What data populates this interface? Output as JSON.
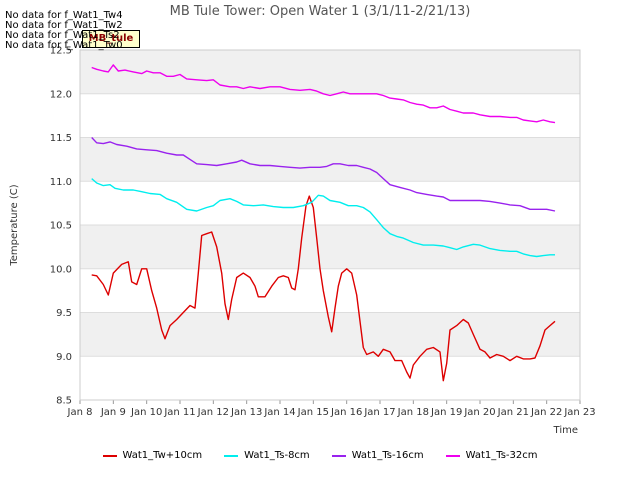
{
  "no_data_messages": [
    "No data for f_Wat1_Tw4",
    "No data for f_Wat1_Tw2",
    "No data for f_Wat1_Ts2",
    "No data for f_Wat1_Tw0"
  ],
  "badge_text": "MB_tule",
  "chart_data": {
    "type": "line",
    "title": "MB Tule Tower: Open Water 1 (3/1/11-2/21/13)",
    "xlabel": "Time",
    "ylabel": "Temperature (C)",
    "xlim": [
      8,
      23
    ],
    "ylim": [
      8.5,
      12.5
    ],
    "x_ticks": [
      8,
      9,
      10,
      11,
      12,
      13,
      14,
      15,
      16,
      17,
      18,
      19,
      20,
      21,
      22,
      23
    ],
    "x_tick_labels": [
      "Jan 8",
      "Jan 9",
      "Jan 10",
      "Jan 11",
      "Jan 12",
      "Jan 13",
      "Jan 14",
      "Jan 15",
      "Jan 16",
      "Jan 17",
      "Jan 18",
      "Jan 19",
      "Jan 20",
      "Jan 21",
      "Jan 22",
      "Jan 23"
    ],
    "y_ticks": [
      8.5,
      9.0,
      9.5,
      10.0,
      10.5,
      11.0,
      11.5,
      12.0,
      12.5
    ],
    "y_tick_labels": [
      "8.5",
      "9.0",
      "9.5",
      "10.0",
      "10.5",
      "11.0",
      "11.5",
      "12.0",
      "12.5"
    ],
    "grid": true,
    "legend_position": "bottom",
    "series": [
      {
        "name": "Wat1_Tw+10cm",
        "color": "#dd0000",
        "points": [
          [
            8.35,
            9.93
          ],
          [
            8.5,
            9.92
          ],
          [
            8.7,
            9.82
          ],
          [
            8.85,
            9.7
          ],
          [
            9.0,
            9.95
          ],
          [
            9.25,
            10.05
          ],
          [
            9.45,
            10.08
          ],
          [
            9.55,
            9.85
          ],
          [
            9.7,
            9.82
          ],
          [
            9.85,
            10.0
          ],
          [
            10.0,
            10.0
          ],
          [
            10.15,
            9.75
          ],
          [
            10.3,
            9.55
          ],
          [
            10.45,
            9.3
          ],
          [
            10.55,
            9.2
          ],
          [
            10.7,
            9.35
          ],
          [
            10.9,
            9.42
          ],
          [
            11.1,
            9.5
          ],
          [
            11.3,
            9.58
          ],
          [
            11.45,
            9.55
          ],
          [
            11.55,
            9.95
          ],
          [
            11.65,
            10.38
          ],
          [
            11.8,
            10.4
          ],
          [
            11.95,
            10.42
          ],
          [
            12.1,
            10.25
          ],
          [
            12.25,
            9.95
          ],
          [
            12.35,
            9.6
          ],
          [
            12.45,
            9.42
          ],
          [
            12.55,
            9.65
          ],
          [
            12.7,
            9.9
          ],
          [
            12.9,
            9.95
          ],
          [
            13.1,
            9.9
          ],
          [
            13.25,
            9.8
          ],
          [
            13.35,
            9.68
          ],
          [
            13.55,
            9.68
          ],
          [
            13.75,
            9.8
          ],
          [
            13.95,
            9.9
          ],
          [
            14.1,
            9.92
          ],
          [
            14.25,
            9.9
          ],
          [
            14.35,
            9.78
          ],
          [
            14.45,
            9.76
          ],
          [
            14.55,
            10.0
          ],
          [
            14.65,
            10.35
          ],
          [
            14.78,
            10.72
          ],
          [
            14.88,
            10.83
          ],
          [
            15.0,
            10.7
          ],
          [
            15.1,
            10.35
          ],
          [
            15.2,
            10.0
          ],
          [
            15.3,
            9.75
          ],
          [
            15.45,
            9.45
          ],
          [
            15.55,
            9.28
          ],
          [
            15.65,
            9.55
          ],
          [
            15.75,
            9.8
          ],
          [
            15.85,
            9.95
          ],
          [
            16.0,
            10.0
          ],
          [
            16.15,
            9.95
          ],
          [
            16.3,
            9.7
          ],
          [
            16.4,
            9.4
          ],
          [
            16.5,
            9.1
          ],
          [
            16.6,
            9.02
          ],
          [
            16.8,
            9.05
          ],
          [
            16.95,
            9.0
          ],
          [
            17.1,
            9.08
          ],
          [
            17.3,
            9.05
          ],
          [
            17.45,
            8.95
          ],
          [
            17.65,
            8.95
          ],
          [
            17.8,
            8.82
          ],
          [
            17.9,
            8.75
          ],
          [
            18.0,
            8.9
          ],
          [
            18.2,
            9.0
          ],
          [
            18.4,
            9.08
          ],
          [
            18.6,
            9.1
          ],
          [
            18.8,
            9.05
          ],
          [
            18.9,
            8.72
          ],
          [
            19.0,
            8.92
          ],
          [
            19.1,
            9.3
          ],
          [
            19.3,
            9.35
          ],
          [
            19.5,
            9.42
          ],
          [
            19.65,
            9.38
          ],
          [
            19.8,
            9.25
          ],
          [
            20.0,
            9.08
          ],
          [
            20.15,
            9.05
          ],
          [
            20.3,
            8.98
          ],
          [
            20.5,
            9.02
          ],
          [
            20.7,
            9.0
          ],
          [
            20.9,
            8.95
          ],
          [
            21.1,
            9.0
          ],
          [
            21.3,
            8.97
          ],
          [
            21.5,
            8.97
          ],
          [
            21.65,
            8.98
          ],
          [
            21.8,
            9.12
          ],
          [
            21.95,
            9.3
          ],
          [
            22.1,
            9.35
          ],
          [
            22.25,
            9.4
          ]
        ]
      },
      {
        "name": "Wat1_Ts-8cm",
        "color": "#00eeee",
        "points": [
          [
            8.35,
            11.03
          ],
          [
            8.5,
            10.98
          ],
          [
            8.7,
            10.95
          ],
          [
            8.9,
            10.96
          ],
          [
            9.05,
            10.92
          ],
          [
            9.3,
            10.9
          ],
          [
            9.6,
            10.9
          ],
          [
            9.85,
            10.88
          ],
          [
            10.1,
            10.86
          ],
          [
            10.4,
            10.85
          ],
          [
            10.6,
            10.8
          ],
          [
            10.9,
            10.76
          ],
          [
            11.2,
            10.68
          ],
          [
            11.5,
            10.66
          ],
          [
            11.8,
            10.7
          ],
          [
            12.0,
            10.72
          ],
          [
            12.2,
            10.78
          ],
          [
            12.5,
            10.8
          ],
          [
            12.7,
            10.77
          ],
          [
            12.9,
            10.73
          ],
          [
            13.2,
            10.72
          ],
          [
            13.5,
            10.73
          ],
          [
            13.8,
            10.71
          ],
          [
            14.1,
            10.7
          ],
          [
            14.4,
            10.7
          ],
          [
            14.7,
            10.72
          ],
          [
            14.95,
            10.76
          ],
          [
            15.15,
            10.84
          ],
          [
            15.3,
            10.83
          ],
          [
            15.5,
            10.78
          ],
          [
            15.8,
            10.76
          ],
          [
            16.05,
            10.72
          ],
          [
            16.3,
            10.72
          ],
          [
            16.5,
            10.7
          ],
          [
            16.7,
            10.65
          ],
          [
            16.9,
            10.56
          ],
          [
            17.1,
            10.47
          ],
          [
            17.3,
            10.4
          ],
          [
            17.5,
            10.37
          ],
          [
            17.7,
            10.35
          ],
          [
            18.0,
            10.3
          ],
          [
            18.3,
            10.27
          ],
          [
            18.6,
            10.27
          ],
          [
            18.9,
            10.26
          ],
          [
            19.1,
            10.24
          ],
          [
            19.3,
            10.22
          ],
          [
            19.5,
            10.25
          ],
          [
            19.8,
            10.28
          ],
          [
            20.0,
            10.27
          ],
          [
            20.3,
            10.23
          ],
          [
            20.6,
            10.21
          ],
          [
            20.9,
            10.2
          ],
          [
            21.1,
            10.2
          ],
          [
            21.3,
            10.17
          ],
          [
            21.5,
            10.15
          ],
          [
            21.7,
            10.14
          ],
          [
            21.9,
            10.15
          ],
          [
            22.1,
            10.16
          ],
          [
            22.25,
            10.16
          ]
        ]
      },
      {
        "name": "Wat1_Ts-16cm",
        "color": "#9922ee",
        "points": [
          [
            8.35,
            11.5
          ],
          [
            8.5,
            11.44
          ],
          [
            8.7,
            11.43
          ],
          [
            8.9,
            11.45
          ],
          [
            9.1,
            11.42
          ],
          [
            9.4,
            11.4
          ],
          [
            9.7,
            11.37
          ],
          [
            10.0,
            11.36
          ],
          [
            10.3,
            11.35
          ],
          [
            10.6,
            11.32
          ],
          [
            10.9,
            11.3
          ],
          [
            11.1,
            11.3
          ],
          [
            11.3,
            11.25
          ],
          [
            11.5,
            11.2
          ],
          [
            11.8,
            11.19
          ],
          [
            12.1,
            11.18
          ],
          [
            12.4,
            11.2
          ],
          [
            12.7,
            11.22
          ],
          [
            12.85,
            11.24
          ],
          [
            13.1,
            11.2
          ],
          [
            13.4,
            11.18
          ],
          [
            13.7,
            11.18
          ],
          [
            14.0,
            11.17
          ],
          [
            14.3,
            11.16
          ],
          [
            14.6,
            11.15
          ],
          [
            14.9,
            11.16
          ],
          [
            15.2,
            11.16
          ],
          [
            15.4,
            11.17
          ],
          [
            15.6,
            11.2
          ],
          [
            15.8,
            11.2
          ],
          [
            16.05,
            11.18
          ],
          [
            16.3,
            11.18
          ],
          [
            16.5,
            11.16
          ],
          [
            16.7,
            11.14
          ],
          [
            16.9,
            11.1
          ],
          [
            17.1,
            11.03
          ],
          [
            17.3,
            10.96
          ],
          [
            17.6,
            10.93
          ],
          [
            17.9,
            10.9
          ],
          [
            18.1,
            10.87
          ],
          [
            18.4,
            10.85
          ],
          [
            18.7,
            10.83
          ],
          [
            18.9,
            10.82
          ],
          [
            19.1,
            10.78
          ],
          [
            19.4,
            10.78
          ],
          [
            19.7,
            10.78
          ],
          [
            20.0,
            10.78
          ],
          [
            20.3,
            10.77
          ],
          [
            20.6,
            10.75
          ],
          [
            20.9,
            10.73
          ],
          [
            21.2,
            10.72
          ],
          [
            21.5,
            10.68
          ],
          [
            21.8,
            10.68
          ],
          [
            22.0,
            10.68
          ],
          [
            22.25,
            10.66
          ]
        ]
      },
      {
        "name": "Wat1_Ts-32cm",
        "color": "#ee00ee",
        "points": [
          [
            8.35,
            12.3
          ],
          [
            8.5,
            12.28
          ],
          [
            8.7,
            12.26
          ],
          [
            8.85,
            12.25
          ],
          [
            9.0,
            12.33
          ],
          [
            9.15,
            12.26
          ],
          [
            9.35,
            12.27
          ],
          [
            9.6,
            12.25
          ],
          [
            9.85,
            12.23
          ],
          [
            10.0,
            12.26
          ],
          [
            10.2,
            12.24
          ],
          [
            10.4,
            12.24
          ],
          [
            10.6,
            12.2
          ],
          [
            10.8,
            12.2
          ],
          [
            11.0,
            12.22
          ],
          [
            11.2,
            12.17
          ],
          [
            11.5,
            12.16
          ],
          [
            11.8,
            12.15
          ],
          [
            12.0,
            12.16
          ],
          [
            12.2,
            12.1
          ],
          [
            12.5,
            12.08
          ],
          [
            12.7,
            12.08
          ],
          [
            12.9,
            12.06
          ],
          [
            13.1,
            12.08
          ],
          [
            13.4,
            12.06
          ],
          [
            13.7,
            12.08
          ],
          [
            14.0,
            12.08
          ],
          [
            14.3,
            12.05
          ],
          [
            14.6,
            12.04
          ],
          [
            14.9,
            12.05
          ],
          [
            15.1,
            12.03
          ],
          [
            15.3,
            12.0
          ],
          [
            15.5,
            11.98
          ],
          [
            15.7,
            12.0
          ],
          [
            15.9,
            12.02
          ],
          [
            16.1,
            12.0
          ],
          [
            16.3,
            12.0
          ],
          [
            16.5,
            12.0
          ],
          [
            16.7,
            12.0
          ],
          [
            16.9,
            12.0
          ],
          [
            17.1,
            11.98
          ],
          [
            17.3,
            11.95
          ],
          [
            17.5,
            11.94
          ],
          [
            17.7,
            11.93
          ],
          [
            17.9,
            11.9
          ],
          [
            18.1,
            11.88
          ],
          [
            18.3,
            11.87
          ],
          [
            18.5,
            11.84
          ],
          [
            18.7,
            11.84
          ],
          [
            18.9,
            11.86
          ],
          [
            19.1,
            11.82
          ],
          [
            19.3,
            11.8
          ],
          [
            19.5,
            11.78
          ],
          [
            19.8,
            11.78
          ],
          [
            20.0,
            11.76
          ],
          [
            20.3,
            11.74
          ],
          [
            20.6,
            11.74
          ],
          [
            20.9,
            11.73
          ],
          [
            21.1,
            11.73
          ],
          [
            21.3,
            11.7
          ],
          [
            21.5,
            11.69
          ],
          [
            21.7,
            11.68
          ],
          [
            21.9,
            11.7
          ],
          [
            22.1,
            11.68
          ],
          [
            22.25,
            11.67
          ]
        ]
      }
    ]
  }
}
